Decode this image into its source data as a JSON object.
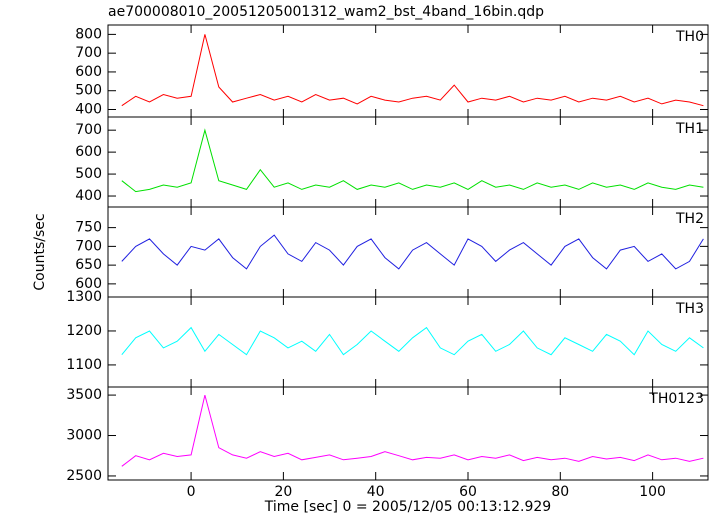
{
  "chart_data": [
    {
      "type": "line",
      "title": "ae700008010_20051205001312_wam2_bst_4band_16bin.qdp",
      "x": [
        -15,
        -12,
        -9,
        -6,
        -3,
        0,
        3,
        6,
        9,
        12,
        15,
        18,
        21,
        24,
        27,
        30,
        33,
        36,
        39,
        42,
        45,
        48,
        51,
        54,
        57,
        60,
        63,
        66,
        69,
        72,
        75,
        78,
        81,
        84,
        87,
        90,
        93,
        96,
        99,
        102,
        105,
        108,
        111
      ],
      "xlim": [
        -18,
        112
      ],
      "xticks": [
        0,
        20,
        40,
        60,
        80,
        100
      ],
      "ylim": [
        360,
        850
      ],
      "yticks": [
        400,
        500,
        600,
        700,
        800
      ],
      "series": [
        {
          "name": "TH0",
          "color": "#ff0000",
          "values": [
            420,
            470,
            440,
            480,
            460,
            470,
            800,
            520,
            440,
            460,
            480,
            450,
            470,
            440,
            480,
            450,
            460,
            430,
            470,
            450,
            440,
            460,
            470,
            450,
            530,
            440,
            460,
            450,
            470,
            440,
            460,
            450,
            470,
            440,
            460,
            450,
            470,
            440,
            460,
            430,
            450,
            440,
            420
          ]
        }
      ]
    },
    {
      "type": "line",
      "x": [
        -15,
        -12,
        -9,
        -6,
        -3,
        0,
        3,
        6,
        9,
        12,
        15,
        18,
        21,
        24,
        27,
        30,
        33,
        36,
        39,
        42,
        45,
        48,
        51,
        54,
        57,
        60,
        63,
        66,
        69,
        72,
        75,
        78,
        81,
        84,
        87,
        90,
        93,
        96,
        99,
        102,
        105,
        108,
        111
      ],
      "xlim": [
        -18,
        112
      ],
      "xticks": [
        0,
        20,
        40,
        60,
        80,
        100
      ],
      "ylim": [
        350,
        760
      ],
      "yticks": [
        400,
        500,
        600,
        700
      ],
      "series": [
        {
          "name": "TH1",
          "color": "#00e000",
          "values": [
            470,
            420,
            430,
            450,
            440,
            460,
            700,
            470,
            450,
            430,
            520,
            440,
            460,
            430,
            450,
            440,
            470,
            430,
            450,
            440,
            460,
            430,
            450,
            440,
            460,
            430,
            470,
            440,
            450,
            430,
            460,
            440,
            450,
            430,
            460,
            440,
            450,
            430,
            460,
            440,
            430,
            450,
            440
          ]
        }
      ]
    },
    {
      "type": "line",
      "y_label": "Counts/sec",
      "x": [
        -15,
        -12,
        -9,
        -6,
        -3,
        0,
        3,
        6,
        9,
        12,
        15,
        18,
        21,
        24,
        27,
        30,
        33,
        36,
        39,
        42,
        45,
        48,
        51,
        54,
        57,
        60,
        63,
        66,
        69,
        72,
        75,
        78,
        81,
        84,
        87,
        90,
        93,
        96,
        99,
        102,
        105,
        108,
        111
      ],
      "xlim": [
        -18,
        112
      ],
      "xticks": [
        0,
        20,
        40,
        60,
        80,
        100
      ],
      "ylim": [
        565,
        805
      ],
      "yticks": [
        600,
        650,
        700,
        750
      ],
      "series": [
        {
          "name": "TH2",
          "color": "#2020e0",
          "values": [
            660,
            700,
            720,
            680,
            650,
            700,
            690,
            720,
            670,
            640,
            700,
            730,
            680,
            660,
            710,
            690,
            650,
            700,
            720,
            670,
            640,
            690,
            710,
            680,
            650,
            720,
            700,
            660,
            690,
            710,
            680,
            650,
            700,
            720,
            670,
            640,
            690,
            700,
            660,
            680,
            640,
            660,
            720
          ]
        }
      ]
    },
    {
      "type": "line",
      "x": [
        -15,
        -12,
        -9,
        -6,
        -3,
        0,
        3,
        6,
        9,
        12,
        15,
        18,
        21,
        24,
        27,
        30,
        33,
        36,
        39,
        42,
        45,
        48,
        51,
        54,
        57,
        60,
        63,
        66,
        69,
        72,
        75,
        78,
        81,
        84,
        87,
        90,
        93,
        96,
        99,
        102,
        105,
        108,
        111
      ],
      "xlim": [
        -18,
        112
      ],
      "xticks": [
        0,
        20,
        40,
        60,
        80,
        100
      ],
      "ylim": [
        1035,
        1300
      ],
      "yticks": [
        1100,
        1200,
        1300
      ],
      "series": [
        {
          "name": "TH3",
          "color": "#00ffff",
          "values": [
            1130,
            1180,
            1200,
            1150,
            1170,
            1210,
            1140,
            1190,
            1160,
            1130,
            1200,
            1180,
            1150,
            1170,
            1140,
            1190,
            1130,
            1160,
            1200,
            1170,
            1140,
            1180,
            1210,
            1150,
            1130,
            1170,
            1190,
            1140,
            1160,
            1200,
            1150,
            1130,
            1180,
            1160,
            1140,
            1190,
            1170,
            1130,
            1200,
            1160,
            1140,
            1180,
            1150
          ]
        }
      ]
    },
    {
      "type": "line",
      "x_label": "Time [sec] 0 = 2005/12/05 00:13:12.929",
      "x": [
        -15,
        -12,
        -9,
        -6,
        -3,
        0,
        3,
        6,
        9,
        12,
        15,
        18,
        21,
        24,
        27,
        30,
        33,
        36,
        39,
        42,
        45,
        48,
        51,
        54,
        57,
        60,
        63,
        66,
        69,
        72,
        75,
        78,
        81,
        84,
        87,
        90,
        93,
        96,
        99,
        102,
        105,
        108,
        111
      ],
      "xlim": [
        -18,
        112
      ],
      "xticks": [
        0,
        20,
        40,
        60,
        80,
        100
      ],
      "ylim": [
        2450,
        3600
      ],
      "yticks": [
        2500,
        3000,
        3500
      ],
      "series": [
        {
          "name": "TH0123",
          "color": "#ff00ff",
          "values": [
            2620,
            2750,
            2700,
            2780,
            2740,
            2760,
            3500,
            2850,
            2760,
            2720,
            2800,
            2740,
            2780,
            2700,
            2730,
            2760,
            2700,
            2720,
            2740,
            2800,
            2750,
            2700,
            2730,
            2720,
            2760,
            2700,
            2740,
            2720,
            2760,
            2690,
            2730,
            2700,
            2720,
            2680,
            2740,
            2710,
            2730,
            2690,
            2760,
            2700,
            2720,
            2680,
            2720
          ]
        }
      ]
    }
  ]
}
